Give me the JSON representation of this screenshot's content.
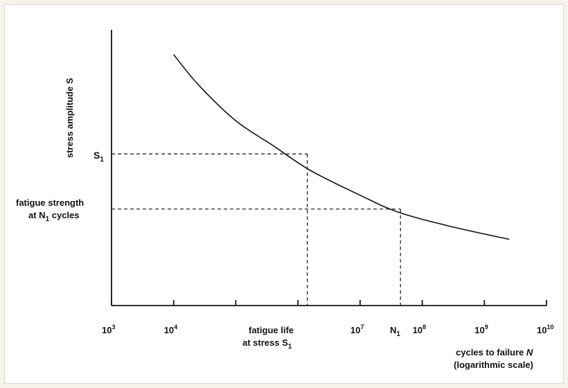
{
  "colors": {
    "page_background": "#f6f4ea",
    "panel_background": "#ffffff",
    "ink": "#111111"
  },
  "chart_data": {
    "type": "line",
    "x_scale": "log10",
    "x_ticks": [
      {
        "exp": 3,
        "base": "10",
        "sup": "3"
      },
      {
        "exp": 4,
        "base": "10",
        "sup": "4"
      },
      {
        "exp": 5,
        "base": "",
        "sup": ""
      },
      {
        "exp": 6,
        "base": "",
        "sup": ""
      },
      {
        "exp": 7,
        "base": "10",
        "sup": "7"
      },
      {
        "exp": 8,
        "base": "10",
        "sup": "8"
      },
      {
        "exp": 9,
        "base": "10",
        "sup": "9"
      },
      {
        "exp": 10,
        "base": "10",
        "sup": "10"
      }
    ],
    "xlim_exp": [
      3,
      10
    ],
    "ylim": [
      0,
      1
    ],
    "curve": [
      {
        "x_exp": 4.0,
        "y": 0.91
      },
      {
        "x_exp": 4.4,
        "y": 0.8
      },
      {
        "x_exp": 5.0,
        "y": 0.67
      },
      {
        "x_exp": 5.6,
        "y": 0.58
      },
      {
        "x_exp": 6.2,
        "y": 0.49
      },
      {
        "x_exp": 7.0,
        "y": 0.4
      },
      {
        "x_exp": 7.6,
        "y": 0.34
      },
      {
        "x_exp": 8.4,
        "y": 0.29
      },
      {
        "x_exp": 9.4,
        "y": 0.24
      }
    ],
    "points": [
      {
        "x_exp": 6.15,
        "y": 0.55
      },
      {
        "x_exp": 7.65,
        "y": 0.35
      }
    ],
    "labels": {
      "ylabel": "stress amplitude S",
      "s1": {
        "base": "S",
        "sub": "1"
      },
      "fatigue_strength": {
        "line1": "fatigue strength",
        "line2_pre": "at N",
        "line2_sub": "1",
        "line2_post": " cycles"
      },
      "fatigue_life": {
        "line1": "fatigue life",
        "line2_pre": "at stress S",
        "line2_sub": "1"
      },
      "n1": {
        "base": "N",
        "sub": "1"
      },
      "xlabel": {
        "line1_pre": "cycles to failure ",
        "line1_var": "N",
        "line2": "(logarithmic scale)"
      }
    }
  }
}
